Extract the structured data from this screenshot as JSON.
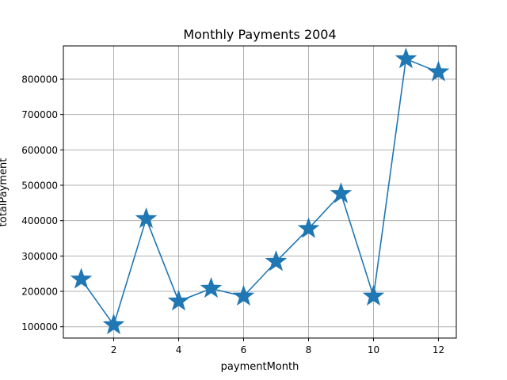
{
  "chart_data": {
    "type": "line",
    "title": "Monthly Payments 2004",
    "xlabel": "paymentMonth",
    "ylabel": "totalPayment",
    "x": [
      1,
      2,
      3,
      4,
      5,
      6,
      7,
      8,
      9,
      10,
      11,
      12
    ],
    "series": [
      {
        "values": [
          234000,
          105000,
          405000,
          172000,
          208000,
          186000,
          284000,
          377000,
          476000,
          186000,
          857000,
          820000
        ],
        "color": "#1f77b4",
        "marker": "star"
      }
    ],
    "xlim": [
      0.45,
      12.55
    ],
    "ylim": [
      68000,
      894000
    ],
    "xticks": [
      2,
      4,
      6,
      8,
      10,
      12
    ],
    "yticks": [
      100000,
      200000,
      300000,
      400000,
      500000,
      600000,
      700000,
      800000
    ],
    "xtick_labels": [
      "2",
      "4",
      "6",
      "8",
      "10",
      "12"
    ],
    "ytick_labels": [
      "100000",
      "200000",
      "300000",
      "400000",
      "500000",
      "600000",
      "700000",
      "800000"
    ],
    "grid": true
  }
}
